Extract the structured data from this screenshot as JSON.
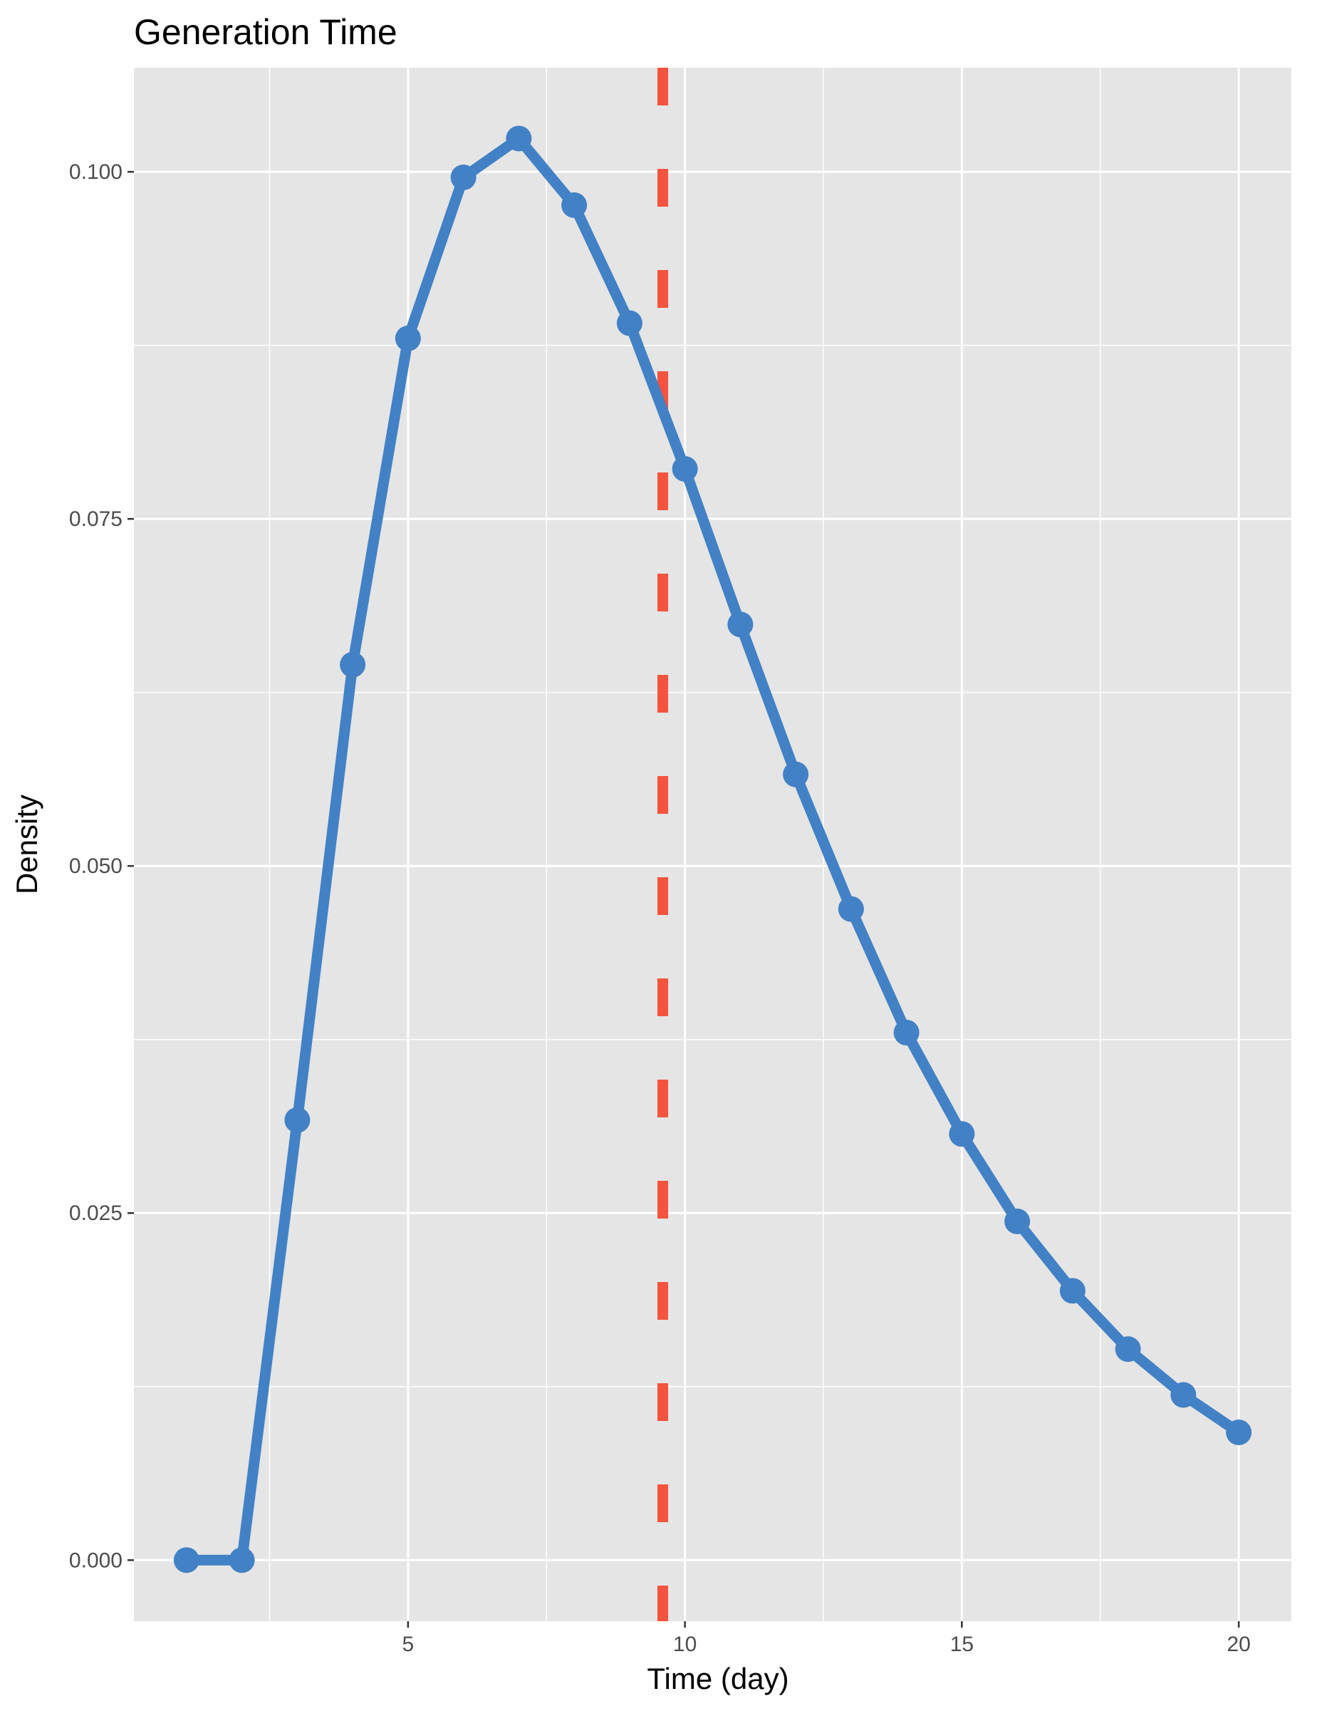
{
  "chart_data": {
    "type": "line",
    "title": "Generation Time",
    "xlabel": "Time (day)",
    "ylabel": "Density",
    "x_ticks": [
      5,
      10,
      15,
      20
    ],
    "x_tick_labels": [
      "5",
      "10",
      "15",
      "20"
    ],
    "y_ticks": [
      0,
      0.025,
      0.05,
      0.075,
      0.1
    ],
    "y_tick_labels": [
      "0.000",
      "0.025",
      "0.050",
      "0.075",
      "0.100"
    ],
    "xlim": [
      0.05,
      20.95
    ],
    "ylim": [
      -0.0044,
      0.1075
    ],
    "grid": true,
    "background_color": "#e5e5e5",
    "grid_color": "#ffffff",
    "series": [
      {
        "color": "#4281c5",
        "markers": true,
        "x": [
          1,
          2,
          3,
          4,
          5,
          6,
          7,
          8,
          9,
          10,
          11,
          12,
          13,
          14,
          15,
          16,
          17,
          18,
          19,
          20
        ],
        "y": [
          0.0,
          0.0,
          0.0317,
          0.0645,
          0.088,
          0.0996,
          0.1024,
          0.0976,
          0.0891,
          0.0786,
          0.0674,
          0.0566,
          0.0469,
          0.038,
          0.0307,
          0.0244,
          0.0194,
          0.0152,
          0.0119,
          0.0092
        ]
      }
    ],
    "reference_line": {
      "orientation": "vertical",
      "x": 9.6,
      "style": "dashed",
      "color": "#f5533d"
    }
  }
}
